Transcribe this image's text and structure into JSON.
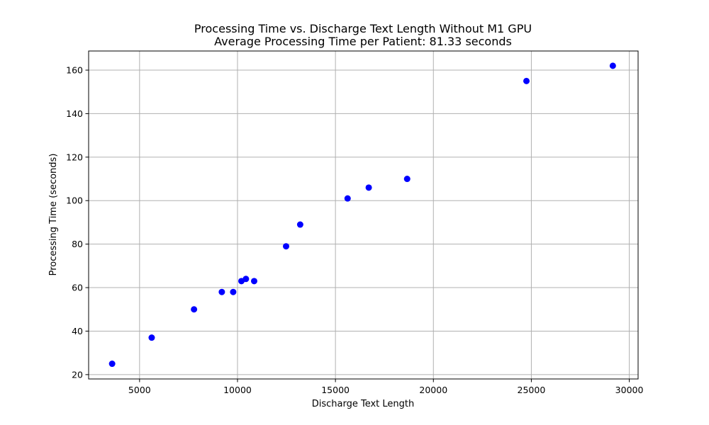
{
  "chart_data": {
    "type": "scatter",
    "title": "Processing Time vs. Discharge Text Length Without M1 GPU",
    "subtitle": "Average Processing Time per Patient: 81.33 seconds",
    "xlabel": "Discharge Text Length",
    "ylabel": "Processing Time (seconds)",
    "xlim": [
      2400,
      30450
    ],
    "ylim": [
      18,
      168.8
    ],
    "xticks": [
      5000,
      10000,
      15000,
      20000,
      25000,
      30000
    ],
    "yticks": [
      20,
      40,
      60,
      80,
      100,
      120,
      140,
      160
    ],
    "grid": true,
    "marker_color": "#0000ff",
    "points": [
      {
        "x": 3600,
        "y": 25
      },
      {
        "x": 5620,
        "y": 37
      },
      {
        "x": 7780,
        "y": 50
      },
      {
        "x": 9200,
        "y": 58
      },
      {
        "x": 9780,
        "y": 58
      },
      {
        "x": 10200,
        "y": 63
      },
      {
        "x": 10430,
        "y": 64
      },
      {
        "x": 10850,
        "y": 63
      },
      {
        "x": 12480,
        "y": 79
      },
      {
        "x": 13200,
        "y": 89
      },
      {
        "x": 15620,
        "y": 101
      },
      {
        "x": 16700,
        "y": 106
      },
      {
        "x": 18660,
        "y": 110
      },
      {
        "x": 24750,
        "y": 155
      },
      {
        "x": 29160,
        "y": 162
      }
    ]
  }
}
